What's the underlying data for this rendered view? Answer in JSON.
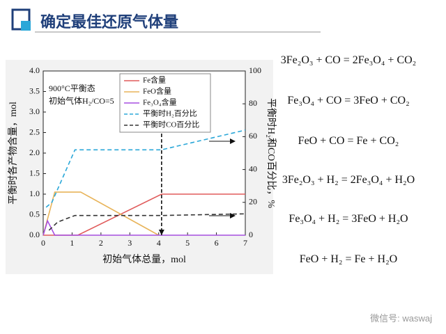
{
  "header": {
    "title": "确定最佳还原气体量"
  },
  "chart_data": {
    "type": "line",
    "annotation": [
      "900°C平衡态",
      "初始气体H₂/CO=5"
    ],
    "xlabel": "初始气体总量，mol",
    "ylabel": "平衡时各产物含量，mol",
    "y2label": "平衡时H₂和CO百分比，%",
    "xlim": [
      0,
      7
    ],
    "xticks": [
      0,
      1,
      2,
      3,
      4,
      5,
      6,
      7
    ],
    "ylim": [
      0,
      4
    ],
    "yticks": [
      {
        "value": 0,
        "label": "0.0"
      },
      {
        "value": 0.5,
        "label": "0.5"
      },
      {
        "value": 1,
        "label": "1.0"
      },
      {
        "value": 1.5,
        "label": "1.5"
      },
      {
        "value": 2,
        "label": "2.0"
      },
      {
        "value": 2.5,
        "label": "2.5"
      },
      {
        "value": 3,
        "label": "3.0"
      },
      {
        "value": 3.5,
        "label": "3.5"
      },
      {
        "value": 4,
        "label": "4.0"
      }
    ],
    "y2lim": [
      0,
      100
    ],
    "y2ticks": [
      0,
      20,
      40,
      60,
      80,
      100
    ],
    "series": [
      {
        "name": "Fe含量",
        "color": "#e05a5a",
        "dashed": false,
        "x": [
          0,
          1.2,
          4.1,
          7
        ],
        "values": [
          0,
          0,
          1.0,
          1.0
        ]
      },
      {
        "name": "FeO含量",
        "color": "#e8b45a",
        "dashed": false,
        "x": [
          0,
          0.4,
          1.3,
          4.0
        ],
        "values": [
          0,
          1.05,
          1.05,
          0
        ]
      },
      {
        "name": "Fe₃O₄含量",
        "color": "#a64ee0",
        "dashed": false,
        "x": [
          0,
          0.15,
          0.4,
          7
        ],
        "values": [
          0,
          0.35,
          0,
          0
        ]
      },
      {
        "name": "平衡时H₂百分比",
        "color": "#2aa7d8",
        "dashed": true,
        "axis": "y2",
        "x": [
          0.1,
          0.3,
          1.1,
          4.1,
          7
        ],
        "values": [
          17,
          20,
          52,
          52,
          64
        ]
      },
      {
        "name": "平衡时CO百分比",
        "color": "#333333",
        "dashed": true,
        "axis": "y2",
        "x": [
          0.2,
          0.5,
          1.1,
          4.1,
          7
        ],
        "values": [
          3,
          8,
          12,
          12,
          13
        ]
      }
    ]
  },
  "equations": [
    "3Fe₂O₃ + CO = 2Fe₃O₄ + CO₂",
    "Fe₃O₄ + CO = 3FeO + CO₂",
    "FeO + CO = Fe + CO₂",
    "3Fe₂O₃ + H₂ = 2Fe₃O₄ + H₂O",
    "Fe₃O₄ + H₂ = 3FeO + H₂O",
    "FeO + H₂ = Fe + H₂O"
  ],
  "watermark": "微信号: waswaj"
}
